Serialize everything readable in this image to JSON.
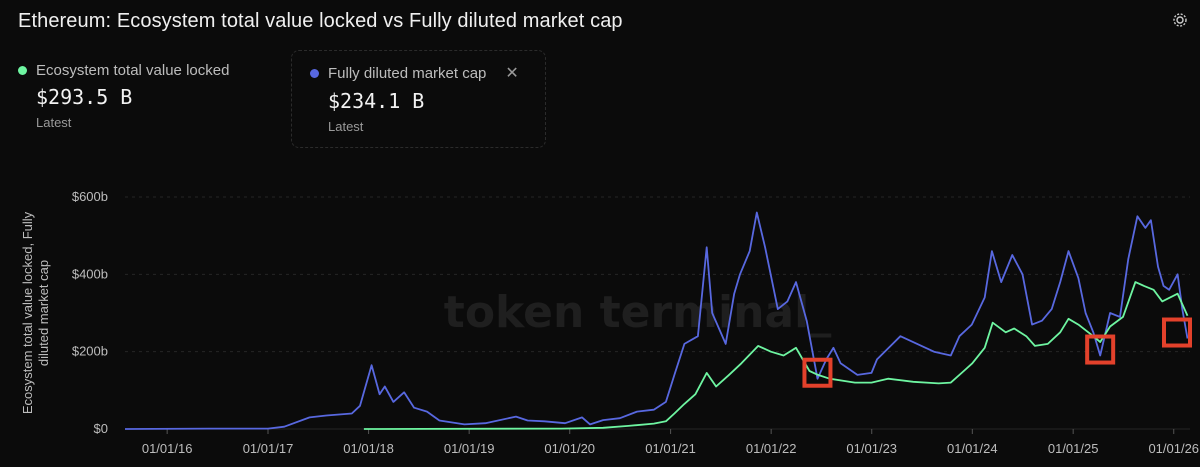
{
  "title": "Ethereum: Ecosystem total value locked vs Fully diluted market cap",
  "legend": {
    "tvl": {
      "label": "Ecosystem total value locked",
      "value": "$293.5 B",
      "sub": "Latest",
      "color": "#6ef5a1"
    },
    "fdmc": {
      "label": "Fully diluted market cap",
      "value": "$234.1 B",
      "sub": "Latest",
      "color": "#5868e0"
    },
    "close_glyph": "✕"
  },
  "watermark": "token terminal_",
  "chart_data": {
    "type": "line",
    "ylabel": "Ecosystem total value locked, Fully diluted market cap",
    "ylim": [
      0,
      600
    ],
    "y_ticks": [
      0,
      200,
      400,
      600
    ],
    "y_tick_labels": [
      "$0",
      "$200b",
      "$400b",
      "$600b"
    ],
    "x_range": [
      "2015-08-01",
      "2026-03-01"
    ],
    "x_ticks": [
      "2016-01-01",
      "2017-01-01",
      "2018-01-01",
      "2019-01-01",
      "2020-01-01",
      "2021-01-01",
      "2022-01-01",
      "2023-01-01",
      "2024-01-01",
      "2025-01-01",
      "2026-01-01"
    ],
    "x_tick_labels": [
      "01/01/16",
      "01/01/17",
      "01/01/18",
      "01/01/19",
      "01/01/20",
      "01/01/21",
      "01/01/22",
      "01/01/23",
      "01/01/24",
      "01/01/25",
      "01/01/26"
    ],
    "series": [
      {
        "name": "Fully diluted market cap",
        "color": "#5868e0",
        "points": [
          [
            "2015-08-01",
            0
          ],
          [
            "2016-06-01",
            1
          ],
          [
            "2017-01-01",
            1
          ],
          [
            "2017-03-01",
            6
          ],
          [
            "2017-06-01",
            30
          ],
          [
            "2017-08-01",
            35
          ],
          [
            "2017-11-01",
            40
          ],
          [
            "2017-12-01",
            60
          ],
          [
            "2018-01-12",
            165
          ],
          [
            "2018-02-10",
            90
          ],
          [
            "2018-03-01",
            110
          ],
          [
            "2018-04-01",
            70
          ],
          [
            "2018-05-10",
            95
          ],
          [
            "2018-06-15",
            55
          ],
          [
            "2018-08-01",
            45
          ],
          [
            "2018-09-15",
            22
          ],
          [
            "2018-12-15",
            12
          ],
          [
            "2019-03-01",
            15
          ],
          [
            "2019-06-20",
            32
          ],
          [
            "2019-08-01",
            22
          ],
          [
            "2019-10-01",
            20
          ],
          [
            "2019-12-15",
            15
          ],
          [
            "2020-02-15",
            30
          ],
          [
            "2020-03-15",
            12
          ],
          [
            "2020-05-01",
            23
          ],
          [
            "2020-07-01",
            28
          ],
          [
            "2020-09-01",
            45
          ],
          [
            "2020-11-01",
            50
          ],
          [
            "2020-12-15",
            70
          ],
          [
            "2021-01-15",
            140
          ],
          [
            "2021-02-20",
            220
          ],
          [
            "2021-04-10",
            240
          ],
          [
            "2021-05-12",
            470
          ],
          [
            "2021-06-01",
            300
          ],
          [
            "2021-07-20",
            220
          ],
          [
            "2021-08-20",
            350
          ],
          [
            "2021-09-10",
            400
          ],
          [
            "2021-10-15",
            460
          ],
          [
            "2021-11-10",
            560
          ],
          [
            "2021-12-10",
            470
          ],
          [
            "2022-01-25",
            310
          ],
          [
            "2022-03-01",
            330
          ],
          [
            "2022-04-01",
            380
          ],
          [
            "2022-05-10",
            280
          ],
          [
            "2022-06-18",
            130
          ],
          [
            "2022-07-20",
            180
          ],
          [
            "2022-08-15",
            210
          ],
          [
            "2022-09-10",
            170
          ],
          [
            "2022-11-10",
            140
          ],
          [
            "2022-12-31",
            145
          ],
          [
            "2023-01-20",
            180
          ],
          [
            "2023-04-15",
            240
          ],
          [
            "2023-06-15",
            220
          ],
          [
            "2023-08-15",
            200
          ],
          [
            "2023-10-15",
            190
          ],
          [
            "2023-11-15",
            240
          ],
          [
            "2023-12-30",
            270
          ],
          [
            "2024-02-15",
            340
          ],
          [
            "2024-03-12",
            460
          ],
          [
            "2024-04-15",
            380
          ],
          [
            "2024-05-25",
            450
          ],
          [
            "2024-07-01",
            400
          ],
          [
            "2024-08-05",
            270
          ],
          [
            "2024-09-10",
            280
          ],
          [
            "2024-10-15",
            310
          ],
          [
            "2024-11-15",
            380
          ],
          [
            "2024-12-15",
            460
          ],
          [
            "2025-01-20",
            390
          ],
          [
            "2025-02-15",
            300
          ],
          [
            "2025-03-15",
            250
          ],
          [
            "2025-04-09",
            190
          ],
          [
            "2025-05-15",
            300
          ],
          [
            "2025-06-20",
            290
          ],
          [
            "2025-07-20",
            440
          ],
          [
            "2025-08-22",
            550
          ],
          [
            "2025-09-20",
            520
          ],
          [
            "2025-10-10",
            540
          ],
          [
            "2025-11-05",
            420
          ],
          [
            "2025-11-25",
            370
          ],
          [
            "2025-12-15",
            360
          ],
          [
            "2026-01-15",
            400
          ],
          [
            "2026-02-01",
            310
          ],
          [
            "2026-02-20",
            234
          ]
        ]
      },
      {
        "name": "Ecosystem total value locked",
        "color": "#6ef5a1",
        "points": [
          [
            "2017-12-15",
            0
          ],
          [
            "2019-12-01",
            1
          ],
          [
            "2020-05-01",
            3
          ],
          [
            "2020-08-01",
            8
          ],
          [
            "2020-11-01",
            14
          ],
          [
            "2020-12-15",
            20
          ],
          [
            "2021-01-15",
            40
          ],
          [
            "2021-02-20",
            65
          ],
          [
            "2021-04-01",
            90
          ],
          [
            "2021-05-12",
            145
          ],
          [
            "2021-06-15",
            110
          ],
          [
            "2021-08-01",
            140
          ],
          [
            "2021-09-15",
            170
          ],
          [
            "2021-11-15",
            215
          ],
          [
            "2021-12-31",
            200
          ],
          [
            "2022-02-15",
            190
          ],
          [
            "2022-04-01",
            210
          ],
          [
            "2022-05-20",
            150
          ],
          [
            "2022-06-20",
            140
          ],
          [
            "2022-08-01",
            130
          ],
          [
            "2022-11-01",
            120
          ],
          [
            "2022-12-31",
            120
          ],
          [
            "2023-03-01",
            130
          ],
          [
            "2023-06-01",
            122
          ],
          [
            "2023-09-01",
            118
          ],
          [
            "2023-10-15",
            120
          ],
          [
            "2023-12-01",
            150
          ],
          [
            "2024-01-01",
            170
          ],
          [
            "2024-02-15",
            210
          ],
          [
            "2024-03-15",
            275
          ],
          [
            "2024-05-01",
            250
          ],
          [
            "2024-06-01",
            260
          ],
          [
            "2024-07-15",
            240
          ],
          [
            "2024-08-15",
            215
          ],
          [
            "2024-10-01",
            220
          ],
          [
            "2024-11-15",
            250
          ],
          [
            "2024-12-15",
            285
          ],
          [
            "2025-01-20",
            270
          ],
          [
            "2025-03-15",
            240
          ],
          [
            "2025-04-09",
            225
          ],
          [
            "2025-05-15",
            265
          ],
          [
            "2025-07-01",
            290
          ],
          [
            "2025-08-15",
            380
          ],
          [
            "2025-09-15",
            370
          ],
          [
            "2025-10-20",
            360
          ],
          [
            "2025-11-20",
            330
          ],
          [
            "2026-01-15",
            350
          ],
          [
            "2026-02-20",
            293
          ]
        ]
      }
    ],
    "highlights": [
      "2022-06-18",
      "2025-04-09",
      "2026-02-20"
    ],
    "highlight_color": "#e3412b"
  }
}
